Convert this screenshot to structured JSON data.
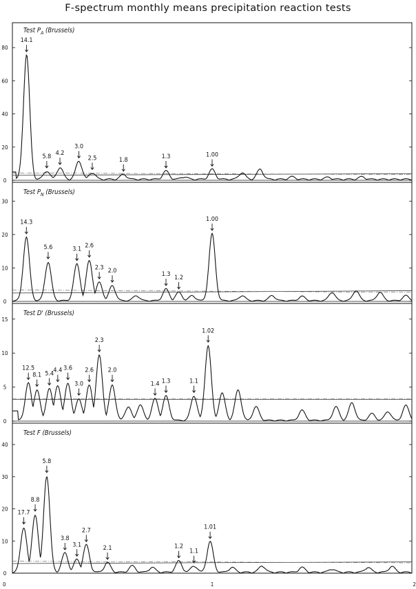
{
  "title": "F-spectrum monthly means precipitation reaction tests",
  "chart_data": {
    "type": "line",
    "title": "F-spectrum monthly means precipitation reaction tests",
    "xlim": [
      0,
      2
    ],
    "x_ticks": [
      0,
      1,
      2
    ],
    "grid": false,
    "panels": [
      {
        "label": "Test P",
        "label_sub": "A",
        "label_suffix": "(Brussels)",
        "ylim": [
          0,
          95
        ],
        "y_ticks": [
          0,
          20,
          40,
          60,
          80
        ],
        "threshold": 3,
        "threshold2": 4,
        "baseline": 5,
        "peaks": [
          {
            "x": 0.071,
            "y": 75,
            "label": "14.1"
          },
          {
            "x": 0.172,
            "y": 5,
            "label": "5.8"
          },
          {
            "x": 0.238,
            "y": 7,
            "label": "4.2"
          },
          {
            "x": 0.333,
            "y": 11,
            "label": "3.0"
          },
          {
            "x": 0.4,
            "y": 4,
            "label": "2.5"
          },
          {
            "x": 0.556,
            "y": 3,
            "label": "1.8"
          },
          {
            "x": 0.769,
            "y": 5,
            "label": "1.3"
          },
          {
            "x": 1.0,
            "y": 6,
            "label": "1.00"
          }
        ],
        "minor": [
          {
            "x": 0.86,
            "y": 1.5
          },
          {
            "x": 1.15,
            "y": 4
          },
          {
            "x": 1.24,
            "y": 6
          },
          {
            "x": 1.4,
            "y": 1.5
          },
          {
            "x": 1.58,
            "y": 1.2
          },
          {
            "x": 1.75,
            "y": 1.5
          }
        ]
      },
      {
        "label": "Test P",
        "label_sub": "N",
        "label_suffix": "(Brussels)",
        "ylim": [
          0,
          35
        ],
        "y_ticks": [
          0,
          10,
          20,
          30
        ],
        "threshold": 2.5,
        "threshold2": 3.2,
        "baseline": 0,
        "peaks": [
          {
            "x": 0.07,
            "y": 19,
            "label": "14.3"
          },
          {
            "x": 0.179,
            "y": 11.5,
            "label": "5.6"
          },
          {
            "x": 0.323,
            "y": 11,
            "label": "3.1"
          },
          {
            "x": 0.385,
            "y": 12,
            "label": "2.6"
          },
          {
            "x": 0.435,
            "y": 5.5,
            "label": "2.3"
          },
          {
            "x": 0.5,
            "y": 4.5,
            "label": "2.0"
          },
          {
            "x": 0.769,
            "y": 3.5,
            "label": "1.3"
          },
          {
            "x": 0.833,
            "y": 2.5,
            "label": "1.2"
          },
          {
            "x": 1.0,
            "y": 20,
            "label": "1.00"
          }
        ],
        "minor": [
          {
            "x": 0.62,
            "y": 1.5
          },
          {
            "x": 0.9,
            "y": 1.5
          },
          {
            "x": 1.15,
            "y": 1.5
          },
          {
            "x": 1.3,
            "y": 1.5
          },
          {
            "x": 1.45,
            "y": 1.3
          },
          {
            "x": 1.6,
            "y": 2.5
          },
          {
            "x": 1.72,
            "y": 3
          },
          {
            "x": 1.84,
            "y": 2.5
          },
          {
            "x": 1.97,
            "y": 1.5
          }
        ]
      },
      {
        "label": "Test D'",
        "label_sub": "",
        "label_suffix": "(Brussels)",
        "ylim": [
          0,
          17
        ],
        "y_ticks": [
          0,
          5,
          10,
          15
        ],
        "threshold": 3.2,
        "threshold2": 3.2,
        "baseline": 1.5,
        "peaks": [
          {
            "x": 0.08,
            "y": 5.5,
            "label": "12.5"
          },
          {
            "x": 0.123,
            "y": 4.5,
            "label": "8.1"
          },
          {
            "x": 0.185,
            "y": 4.7,
            "label": "5.4"
          },
          {
            "x": 0.227,
            "y": 5.2,
            "label": "4.4"
          },
          {
            "x": 0.278,
            "y": 5.5,
            "label": "3.6"
          },
          {
            "x": 0.333,
            "y": 3.2,
            "label": "3.0"
          },
          {
            "x": 0.385,
            "y": 5.2,
            "label": "2.6"
          },
          {
            "x": 0.435,
            "y": 9.6,
            "label": "2.3"
          },
          {
            "x": 0.5,
            "y": 5.2,
            "label": "2.0"
          },
          {
            "x": 0.714,
            "y": 3.2,
            "label": "1.4"
          },
          {
            "x": 0.769,
            "y": 3.6,
            "label": "1.3"
          },
          {
            "x": 0.909,
            "y": 3.6,
            "label": "1.1"
          },
          {
            "x": 0.98,
            "y": 11,
            "label": "1.02"
          }
        ],
        "minor": [
          {
            "x": 0.58,
            "y": 2
          },
          {
            "x": 0.64,
            "y": 2.3
          },
          {
            "x": 1.05,
            "y": 4
          },
          {
            "x": 1.13,
            "y": 4.5
          },
          {
            "x": 1.22,
            "y": 2
          },
          {
            "x": 1.45,
            "y": 1.5
          },
          {
            "x": 1.62,
            "y": 2
          },
          {
            "x": 1.7,
            "y": 2.6
          },
          {
            "x": 1.8,
            "y": 1
          },
          {
            "x": 1.88,
            "y": 1.3
          },
          {
            "x": 1.97,
            "y": 2.2
          }
        ]
      },
      {
        "label": "Test F",
        "label_sub": "",
        "label_suffix": "(Brussels)",
        "ylim": [
          0,
          46
        ],
        "y_ticks": [
          0,
          10,
          20,
          30,
          40
        ],
        "threshold": 3,
        "threshold2": 3.5,
        "baseline": 0,
        "peaks": [
          {
            "x": 0.057,
            "y": 14,
            "label": "17.7"
          },
          {
            "x": 0.114,
            "y": 18,
            "label": "8.8"
          },
          {
            "x": 0.172,
            "y": 30,
            "label": "5.8"
          },
          {
            "x": 0.263,
            "y": 6,
            "label": "3.8"
          },
          {
            "x": 0.323,
            "y": 4,
            "label": "3.1"
          },
          {
            "x": 0.37,
            "y": 8.5,
            "label": "2.7"
          },
          {
            "x": 0.476,
            "y": 3,
            "label": "2.1"
          },
          {
            "x": 0.833,
            "y": 3.5,
            "label": "1.2"
          },
          {
            "x": 0.909,
            "y": 2,
            "label": "1.1"
          },
          {
            "x": 0.99,
            "y": 9.5,
            "label": "1.01"
          }
        ],
        "minor": [
          {
            "x": 0.6,
            "y": 2
          },
          {
            "x": 0.7,
            "y": 1.5
          },
          {
            "x": 1.1,
            "y": 1.5
          },
          {
            "x": 1.25,
            "y": 2
          },
          {
            "x": 1.45,
            "y": 1.5
          },
          {
            "x": 1.6,
            "y": 1
          },
          {
            "x": 1.78,
            "y": 1.5
          },
          {
            "x": 1.9,
            "y": 1.8
          }
        ]
      }
    ]
  }
}
